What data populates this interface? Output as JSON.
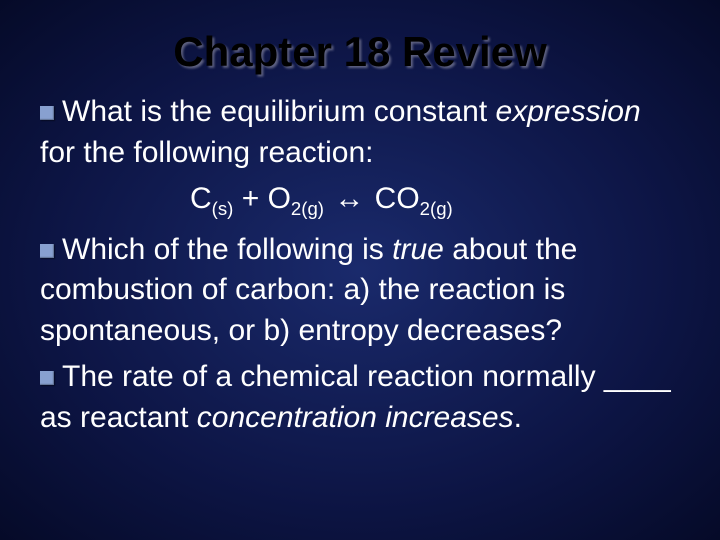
{
  "colors": {
    "background_center": "#1a2a6c",
    "background_edge": "#050a28",
    "title_color": "#000000",
    "body_text_color": "#ffffff",
    "bullet_color": "#88a0d0"
  },
  "typography": {
    "title_fontsize_pt": 32,
    "body_fontsize_pt": 22,
    "font_family": "Arial"
  },
  "slide": {
    "title": "Chapter 18 Review",
    "bullets": [
      {
        "pre": "What is the equilibrium constant ",
        "italic": "expression",
        "post": " for the following reaction:"
      },
      {
        "pre": "Which of the following is ",
        "italic": "true",
        "post": " about the combustion of carbon:  a) the reaction is spontaneous, or  b) entropy decreases?"
      },
      {
        "pre": "The rate of a chemical reaction normally ____ as reactant ",
        "italic": "concentration increases",
        "post": "."
      }
    ],
    "equation": {
      "reactant1": "C",
      "reactant1_sub": "(s)",
      "plus": " + ",
      "reactant2": "O",
      "reactant2_sub": "2(g)",
      "arrow": "↔",
      "product": "CO",
      "product_sub": "2(g)"
    }
  }
}
